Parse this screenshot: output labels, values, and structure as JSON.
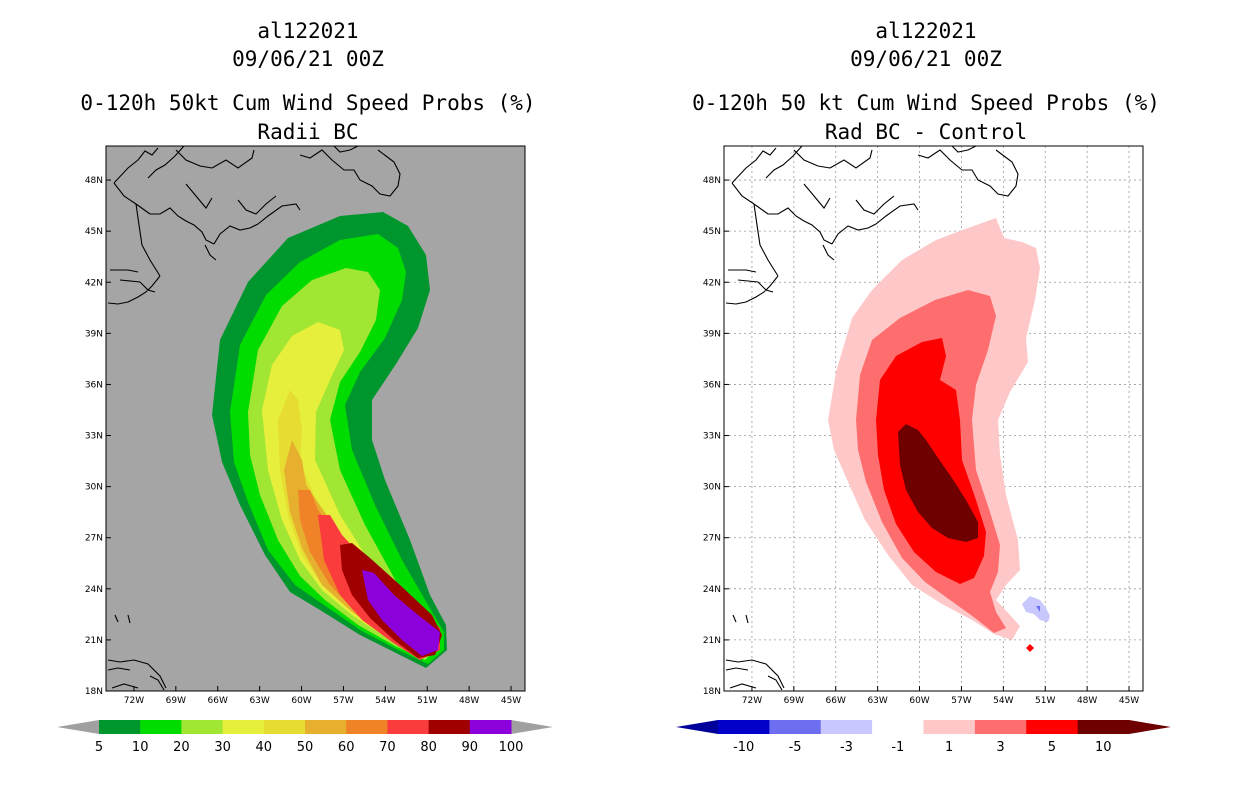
{
  "left_panel": {
    "storm_id": "al122021",
    "date": "09/06/21 00Z",
    "title": "0-120h 50kt Cum Wind Speed Probs (%)",
    "subtitle": "Radii BC"
  },
  "right_panel": {
    "storm_id": "al122021",
    "date": "09/06/21 00Z",
    "title": "0-120h 50 kt Cum Wind Speed Probs (%)",
    "subtitle": "Rad BC - Control"
  },
  "map": {
    "lon_ticks": [
      "72W",
      "69W",
      "66W",
      "63W",
      "60W",
      "57W",
      "54W",
      "51W",
      "48W",
      "45W"
    ],
    "lat_ticks": [
      "18N",
      "21N",
      "24N",
      "27N",
      "30N",
      "33N",
      "36N",
      "39N",
      "42N",
      "45N",
      "48N"
    ],
    "lon_range": [
      -74,
      -44
    ],
    "lat_range": [
      18,
      50
    ]
  },
  "left_colorbar": {
    "labels": [
      "5",
      "10",
      "20",
      "30",
      "40",
      "50",
      "60",
      "70",
      "80",
      "90",
      "100"
    ],
    "colors": [
      "#00962e",
      "#00dc00",
      "#a0e632",
      "#e6f03c",
      "#e6dc32",
      "#e6af2d",
      "#f08228",
      "#fa3c3c",
      "#a00000",
      "#8c00dc"
    ],
    "end_color": "#a0a0a0"
  },
  "right_colorbar": {
    "labels": [
      "-10",
      "-5",
      "-3",
      "-1",
      "1",
      "3",
      "5",
      "10"
    ],
    "colors": [
      "#0000c8",
      "#6e6ef0",
      "#c8c8ff",
      "#ffffff",
      "#ffc8c8",
      "#ff6e6e",
      "#ff0000",
      "#6e0000"
    ],
    "low_end_color": "#00009b",
    "high_end_color": "#6e0000"
  },
  "colors": {
    "left_background": "#a5a5a5",
    "coast": "#000000"
  }
}
